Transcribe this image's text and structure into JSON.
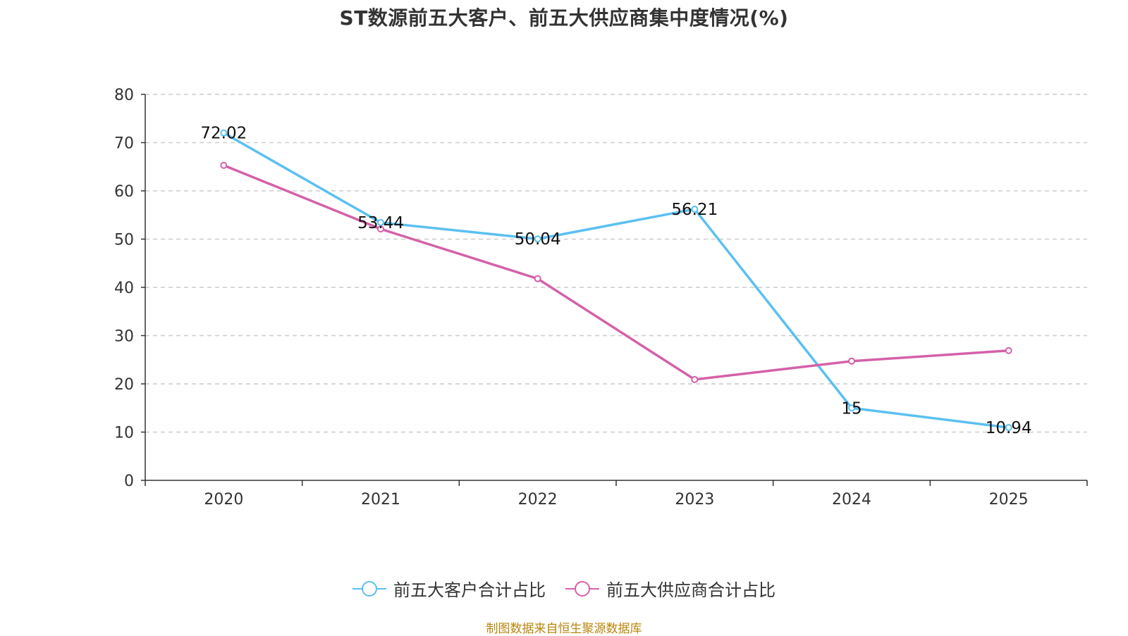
{
  "chart_data": {
    "type": "line",
    "title": "ST数源前五大客户、前五大供应商集中度情况(%)",
    "categories": [
      "2020",
      "2021",
      "2022",
      "2023",
      "2024",
      "2025"
    ],
    "ylim": [
      0,
      80
    ],
    "yticks": [
      0,
      10,
      20,
      30,
      40,
      50,
      60,
      70,
      80
    ],
    "grid": true,
    "legend_position": "bottom",
    "series": [
      {
        "name": "前五大客户合计占比",
        "color": "#5bc0f0",
        "values": [
          72.02,
          53.44,
          50.04,
          56.21,
          15,
          10.94
        ],
        "labels": [
          "72.02",
          "53.44",
          "50.04",
          "56.21",
          "15",
          "10.94"
        ]
      },
      {
        "name": "前五大供应商合计占比",
        "color": "#d461a8",
        "values": [
          65.3,
          52.1,
          41.8,
          20.9,
          24.7,
          26.9
        ],
        "labels": []
      }
    ]
  },
  "source": "制图数据来自恒生聚源数据库"
}
